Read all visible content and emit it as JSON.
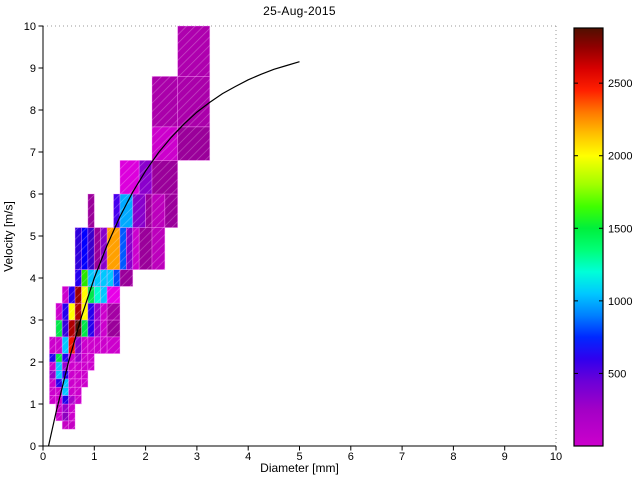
{
  "chart_data": {
    "type": "heatmap",
    "title": "25-Aug-2015",
    "xlabel": "Diameter [mm]",
    "ylabel": "Velocity [m/s]",
    "x_axis": {
      "min": 0,
      "max": 10,
      "ticks": [
        0,
        1,
        2,
        3,
        4,
        5,
        6,
        7,
        8,
        9,
        10
      ]
    },
    "y_axis": {
      "min": 0,
      "max": 10,
      "ticks": [
        0,
        1,
        2,
        3,
        4,
        5,
        6,
        7,
        8,
        9,
        10
      ]
    },
    "cell_format": [
      "d_min_mm",
      "d_max_mm",
      "v_min_ms",
      "v_max_ms",
      "color"
    ],
    "cells": [
      [
        0.375,
        0.5,
        0.4,
        0.6,
        "#C400C4"
      ],
      [
        0.5,
        0.625,
        0.4,
        0.6,
        "#C400C4"
      ],
      [
        0.25,
        0.375,
        0.6,
        0.8,
        "#CC00CC"
      ],
      [
        0.375,
        0.5,
        0.6,
        0.8,
        "#8A00BE"
      ],
      [
        0.5,
        0.625,
        0.6,
        0.8,
        "#CC00CC"
      ],
      [
        0.25,
        0.375,
        0.8,
        1.0,
        "#CC00CC"
      ],
      [
        0.375,
        0.5,
        0.8,
        1.0,
        "#9900CC"
      ],
      [
        0.5,
        0.625,
        0.8,
        1.0,
        "#CC00CC"
      ],
      [
        0.125,
        0.25,
        1.0,
        1.2,
        "#CC00CC"
      ],
      [
        0.25,
        0.375,
        1.0,
        1.2,
        "#CC00CC"
      ],
      [
        0.375,
        0.5,
        1.0,
        1.2,
        "#1C00E8"
      ],
      [
        0.5,
        0.625,
        1.0,
        1.2,
        "#AA00CC"
      ],
      [
        0.625,
        0.75,
        1.0,
        1.2,
        "#CC00CC"
      ],
      [
        0.125,
        0.25,
        1.2,
        1.4,
        "#CC00CC"
      ],
      [
        0.25,
        0.375,
        1.2,
        1.4,
        "#CC00CC"
      ],
      [
        0.375,
        0.5,
        1.2,
        1.4,
        "#00C8FF"
      ],
      [
        0.5,
        0.625,
        1.2,
        1.4,
        "#CC00CC"
      ],
      [
        0.625,
        0.75,
        1.2,
        1.4,
        "#CC00CC"
      ],
      [
        0.125,
        0.25,
        1.4,
        1.6,
        "#CC00CC"
      ],
      [
        0.25,
        0.375,
        1.4,
        1.6,
        "#2400EE"
      ],
      [
        0.375,
        0.5,
        1.4,
        1.6,
        "#00C8FF"
      ],
      [
        0.5,
        0.625,
        1.4,
        1.6,
        "#CC00CC"
      ],
      [
        0.625,
        0.75,
        1.4,
        1.6,
        "#CC00CC"
      ],
      [
        0.75,
        0.875,
        1.4,
        1.6,
        "#CC00CC"
      ],
      [
        0.125,
        0.25,
        1.6,
        1.8,
        "#9900CC"
      ],
      [
        0.25,
        0.375,
        1.6,
        1.8,
        "#00C8FF"
      ],
      [
        0.375,
        0.5,
        1.6,
        1.8,
        "#2400EE"
      ],
      [
        0.5,
        0.625,
        1.6,
        1.8,
        "#CC00CC"
      ],
      [
        0.625,
        0.75,
        1.6,
        1.8,
        "#CC00CC"
      ],
      [
        0.75,
        0.875,
        1.6,
        1.8,
        "#CC00CC"
      ],
      [
        0.125,
        0.25,
        1.8,
        2.0,
        "#CC00CC"
      ],
      [
        0.25,
        0.375,
        1.8,
        2.0,
        "#00C8FF"
      ],
      [
        0.375,
        0.5,
        1.8,
        2.0,
        "#9900CC"
      ],
      [
        0.5,
        0.625,
        1.8,
        2.0,
        "#CC00CC"
      ],
      [
        0.625,
        0.75,
        1.8,
        2.0,
        "#CC00CC"
      ],
      [
        0.75,
        0.875,
        1.8,
        2.0,
        "#CC00CC"
      ],
      [
        0.875,
        1.0,
        1.8,
        2.0,
        "#CC00CC"
      ],
      [
        0.125,
        0.25,
        2.0,
        2.2,
        "#2400EE"
      ],
      [
        0.25,
        0.375,
        2.0,
        2.2,
        "#00E848"
      ],
      [
        0.375,
        0.5,
        2.0,
        2.2,
        "#2400EE"
      ],
      [
        0.5,
        0.625,
        2.0,
        2.2,
        "#CC00CC"
      ],
      [
        0.625,
        0.75,
        2.0,
        2.2,
        "#9900CC"
      ],
      [
        0.75,
        0.875,
        2.0,
        2.2,
        "#CC00CC"
      ],
      [
        0.875,
        1.0,
        2.0,
        2.2,
        "#CC00CC"
      ],
      [
        0.125,
        0.25,
        2.2,
        2.6,
        "#CC00CC"
      ],
      [
        0.25,
        0.375,
        2.2,
        2.6,
        "#CC00CC"
      ],
      [
        0.375,
        0.5,
        2.2,
        2.6,
        "#00C8FF"
      ],
      [
        0.5,
        0.625,
        2.2,
        2.6,
        "#EE1400"
      ],
      [
        0.625,
        0.75,
        2.2,
        2.6,
        "#8800CC"
      ],
      [
        0.75,
        0.875,
        2.2,
        2.6,
        "#CC00CC"
      ],
      [
        0.875,
        1.0,
        2.2,
        2.6,
        "#CC00CC"
      ],
      [
        1.0,
        1.125,
        2.2,
        2.6,
        "#CC00CC"
      ],
      [
        1.125,
        1.25,
        2.2,
        2.6,
        "#CC00CC"
      ],
      [
        1.25,
        1.5,
        2.2,
        2.6,
        "#CC00CC"
      ],
      [
        0.25,
        0.375,
        2.6,
        3.0,
        "#00E848"
      ],
      [
        0.375,
        0.5,
        2.6,
        3.0,
        "#3400DC"
      ],
      [
        0.5,
        0.625,
        2.6,
        3.0,
        "#AE0000"
      ],
      [
        0.625,
        0.75,
        2.6,
        3.0,
        "#501000"
      ],
      [
        0.75,
        0.875,
        2.6,
        3.0,
        "#00E848"
      ],
      [
        0.875,
        1.0,
        2.6,
        3.0,
        "#2400EE"
      ],
      [
        1.0,
        1.125,
        2.6,
        3.0,
        "#9900CC"
      ],
      [
        1.125,
        1.25,
        2.6,
        3.0,
        "#CC00CC"
      ],
      [
        1.25,
        1.5,
        2.6,
        3.0,
        "#9A009A"
      ],
      [
        0.25,
        0.375,
        3.0,
        3.4,
        "#CC00CC"
      ],
      [
        0.375,
        0.5,
        3.0,
        3.4,
        "#2400EE"
      ],
      [
        0.5,
        0.625,
        3.0,
        3.4,
        "#FFFF00"
      ],
      [
        0.625,
        0.75,
        3.0,
        3.4,
        "#AE0000"
      ],
      [
        0.75,
        0.875,
        3.0,
        3.4,
        "#FFFF00"
      ],
      [
        0.875,
        1.0,
        3.0,
        3.4,
        "#2400EE"
      ],
      [
        1.0,
        1.125,
        3.0,
        3.4,
        "#9900CC"
      ],
      [
        1.125,
        1.25,
        3.0,
        3.4,
        "#CC00CC"
      ],
      [
        1.25,
        1.5,
        3.0,
        3.4,
        "#A400A4"
      ],
      [
        0.375,
        0.5,
        3.4,
        3.8,
        "#CC00CC"
      ],
      [
        0.5,
        0.625,
        3.4,
        3.8,
        "#2400EE"
      ],
      [
        0.625,
        0.75,
        3.4,
        3.8,
        "#9A0000"
      ],
      [
        0.75,
        0.875,
        3.4,
        3.8,
        "#FFFF00"
      ],
      [
        0.875,
        1.0,
        3.4,
        3.8,
        "#00E848"
      ],
      [
        1.0,
        1.125,
        3.4,
        3.8,
        "#00FFCC"
      ],
      [
        1.125,
        1.25,
        3.4,
        3.8,
        "#00C8FF"
      ],
      [
        1.25,
        1.5,
        3.4,
        3.8,
        "#E800E8"
      ],
      [
        0.625,
        0.75,
        3.8,
        4.2,
        "#2400EE"
      ],
      [
        0.75,
        0.875,
        3.8,
        4.2,
        "#28E800"
      ],
      [
        0.875,
        1.0,
        3.8,
        4.2,
        "#00C8FF"
      ],
      [
        1.0,
        1.125,
        3.8,
        4.2,
        "#00C8FF"
      ],
      [
        1.125,
        1.25,
        3.8,
        4.2,
        "#00C8FF"
      ],
      [
        1.25,
        1.375,
        3.8,
        4.2,
        "#00C8FF"
      ],
      [
        1.375,
        1.5,
        3.8,
        4.2,
        "#0048FF"
      ],
      [
        1.5,
        1.75,
        3.8,
        4.2,
        "#9A009A"
      ],
      [
        0.625,
        0.75,
        4.2,
        5.2,
        "#2E00DC"
      ],
      [
        0.75,
        0.875,
        4.2,
        5.2,
        "#0000FF"
      ],
      [
        0.875,
        1.0,
        4.2,
        5.2,
        "#3800CC"
      ],
      [
        1.0,
        1.125,
        4.2,
        5.2,
        "#9A009A"
      ],
      [
        1.125,
        1.25,
        4.2,
        5.2,
        "#8800CC"
      ],
      [
        1.25,
        1.5,
        4.2,
        5.2,
        "#FFA000"
      ],
      [
        1.5,
        1.625,
        4.2,
        5.2,
        "#0058FF"
      ],
      [
        1.625,
        1.75,
        4.2,
        5.2,
        "#8800CC"
      ],
      [
        1.75,
        1.875,
        4.2,
        5.2,
        "#CC00CC"
      ],
      [
        1.875,
        2.125,
        4.2,
        5.2,
        "#9A009A"
      ],
      [
        2.125,
        2.375,
        4.2,
        5.2,
        "#BC00BC"
      ],
      [
        0.875,
        1.0,
        5.2,
        6.0,
        "#9A009A"
      ],
      [
        1.375,
        1.5,
        5.2,
        6.0,
        "#4600EE"
      ],
      [
        1.5,
        1.75,
        5.2,
        6.0,
        "#00AAFF"
      ],
      [
        1.75,
        2.0,
        5.2,
        6.0,
        "#8800CC"
      ],
      [
        2.0,
        2.125,
        5.2,
        6.0,
        "#9A009A"
      ],
      [
        2.125,
        2.375,
        5.2,
        6.0,
        "#BC00BC"
      ],
      [
        2.375,
        2.625,
        5.2,
        6.0,
        "#9A009A"
      ],
      [
        1.5,
        1.875,
        6.0,
        6.8,
        "#DC00DC"
      ],
      [
        1.875,
        2.125,
        6.0,
        6.8,
        "#8A00CC"
      ],
      [
        2.125,
        2.625,
        6.0,
        6.8,
        "#9A009A"
      ],
      [
        2.125,
        2.625,
        6.8,
        7.6,
        "#CC00CC"
      ],
      [
        2.625,
        3.25,
        6.8,
        7.6,
        "#9A009A"
      ],
      [
        2.125,
        2.625,
        7.6,
        8.8,
        "#AA00AA"
      ],
      [
        2.625,
        3.25,
        7.6,
        8.8,
        "#AA00AA"
      ],
      [
        2.625,
        3.25,
        8.8,
        10.0,
        "#AE00AE"
      ]
    ],
    "fit_curve": {
      "points": [
        [
          0.11,
          0.01
        ],
        [
          0.25,
          0.78
        ],
        [
          0.5,
          2.02
        ],
        [
          0.75,
          3.08
        ],
        [
          1.0,
          4.0
        ],
        [
          1.25,
          4.78
        ],
        [
          1.5,
          5.46
        ],
        [
          1.75,
          6.05
        ],
        [
          2.0,
          6.55
        ],
        [
          2.25,
          6.98
        ],
        [
          2.5,
          7.35
        ],
        [
          2.75,
          7.67
        ],
        [
          3.0,
          7.95
        ],
        [
          3.25,
          8.18
        ],
        [
          3.5,
          8.39
        ],
        [
          3.75,
          8.56
        ],
        [
          4.0,
          8.72
        ],
        [
          4.25,
          8.85
        ],
        [
          4.5,
          8.97
        ],
        [
          4.75,
          9.06
        ],
        [
          5.0,
          9.15
        ]
      ]
    },
    "color_scale": {
      "vmin": 0,
      "vmax": 2880,
      "tick_values": [
        500,
        1000,
        1500,
        2000,
        2500
      ],
      "gradient": [
        {
          "v": 0,
          "c": "#CC00CC"
        },
        {
          "v": 250,
          "c": "#A300C6"
        },
        {
          "v": 450,
          "c": "#6A00D8"
        },
        {
          "v": 600,
          "c": "#3000EE"
        },
        {
          "v": 750,
          "c": "#0028FF"
        },
        {
          "v": 900,
          "c": "#0080FF"
        },
        {
          "v": 1050,
          "c": "#00C8FF"
        },
        {
          "v": 1200,
          "c": "#00FFD8"
        },
        {
          "v": 1350,
          "c": "#00FF78"
        },
        {
          "v": 1500,
          "c": "#00F03C"
        },
        {
          "v": 1650,
          "c": "#40FF00"
        },
        {
          "v": 1800,
          "c": "#A0FF00"
        },
        {
          "v": 2000,
          "c": "#FFFF00"
        },
        {
          "v": 2150,
          "c": "#FFC000"
        },
        {
          "v": 2300,
          "c": "#FF7800"
        },
        {
          "v": 2450,
          "c": "#FF2000"
        },
        {
          "v": 2600,
          "c": "#D80000"
        },
        {
          "v": 2750,
          "c": "#900000"
        },
        {
          "v": 2880,
          "c": "#501000"
        }
      ],
      "color_value_map": {
        "#C400C4": 80,
        "#CC00CC": 100,
        "#BC00BC": 150,
        "#AA00AA": 200,
        "#AE00AE": 190,
        "#9A009A": 250,
        "#A400A4": 220,
        "#DC00DC": 60,
        "#E800E8": 50,
        "#AA00CC": 300,
        "#9900CC": 350,
        "#8800CC": 380,
        "#8A00CC": 380,
        "#8A00BE": 350,
        "#3800CC": 500,
        "#4600EE": 560,
        "#3400DC": 580,
        "#2E00DC": 600,
        "#2400EE": 620,
        "#1C00E8": 640,
        "#0000FF": 700,
        "#0048FF": 800,
        "#0058FF": 820,
        "#00AAFF": 950,
        "#00C8FF": 1050,
        "#00FFCC": 1200,
        "#00E848": 1400,
        "#28E800": 1550,
        "#FFFF00": 2000,
        "#FFA000": 2200,
        "#EE1400": 2450,
        "#AE0000": 2600,
        "#9A0000": 2650,
        "#501000": 2850
      }
    }
  }
}
